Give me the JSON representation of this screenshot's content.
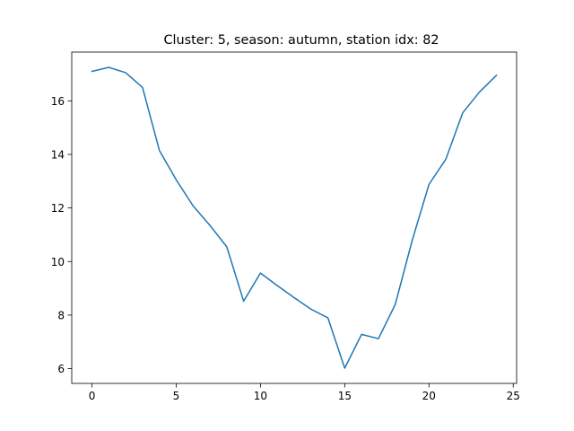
{
  "chart_data": {
    "type": "line",
    "title": "Cluster: 5, season: autumn, station idx: 82",
    "xlabel": "",
    "ylabel": "",
    "xlim": [
      -1.2,
      25.2
    ],
    "ylim": [
      5.45,
      17.82
    ],
    "xticks": [
      0,
      5,
      10,
      15,
      20,
      25
    ],
    "yticks": [
      6,
      8,
      10,
      12,
      14,
      16
    ],
    "grid": false,
    "color": "#1f77b4",
    "x": [
      0,
      1,
      2,
      3,
      4,
      5,
      6,
      7,
      8,
      9,
      10,
      11,
      12,
      13,
      14,
      15,
      16,
      17,
      18,
      19,
      20,
      21,
      22,
      23,
      24
    ],
    "values": [
      17.1,
      17.25,
      17.05,
      16.5,
      14.15,
      13.05,
      12.08,
      11.35,
      10.55,
      8.52,
      9.57,
      9.1,
      8.65,
      8.22,
      7.9,
      6.02,
      7.28,
      7.12,
      8.4,
      10.78,
      12.88,
      13.82,
      15.55,
      16.33,
      16.95
    ]
  }
}
